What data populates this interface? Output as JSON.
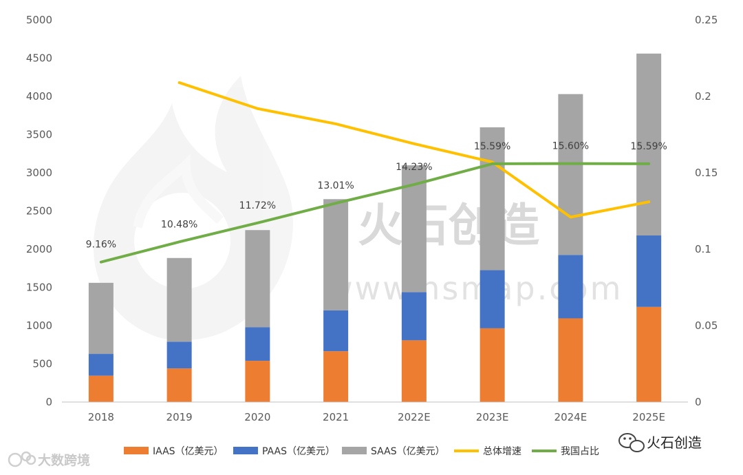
{
  "chart_data": {
    "type": "bar",
    "stacked": true,
    "categories": [
      "2018",
      "2019",
      "2020",
      "2021",
      "2022E",
      "2023E",
      "2024E",
      "2025E"
    ],
    "series": [
      {
        "name": "IAAS（亿美元）",
        "type": "bar",
        "axis": "left",
        "color": "#ED7D31",
        "values": [
          345,
          440,
          540,
          665,
          808,
          965,
          1095,
          1245
        ]
      },
      {
        "name": "PAAS（亿美元）",
        "type": "bar",
        "axis": "left",
        "color": "#4472C4",
        "values": [
          285,
          350,
          440,
          535,
          630,
          760,
          830,
          935
        ]
      },
      {
        "name": "SAAS（亿美元）",
        "type": "bar",
        "axis": "left",
        "color": "#A5A5A5",
        "values": [
          930,
          1095,
          1270,
          1455,
          1660,
          1870,
          2105,
          2380
        ]
      },
      {
        "name": "总体增速",
        "type": "line",
        "axis": "right",
        "color": "#FFC000",
        "values": [
          null,
          0.209,
          0.192,
          0.182,
          0.169,
          0.157,
          0.121,
          0.131
        ]
      },
      {
        "name": "我国占比",
        "type": "line",
        "axis": "right",
        "color": "#70AD47",
        "values": [
          0.0916,
          0.1048,
          0.1172,
          0.1301,
          0.1423,
          0.1559,
          0.156,
          0.1559
        ],
        "labels": [
          "9.16%",
          "10.48%",
          "11.72%",
          "13.01%",
          "14.23%",
          "15.59%",
          "15.60%",
          "15.59%"
        ]
      }
    ],
    "y_left": {
      "ylim": [
        0,
        5000
      ],
      "ticks": [
        "0",
        "500",
        "1000",
        "1500",
        "2000",
        "2500",
        "3000",
        "3500",
        "4000",
        "4500",
        "5000"
      ]
    },
    "y_right": {
      "ylim": [
        0,
        0.25
      ],
      "ticks": [
        "0",
        "0.05",
        "0.1",
        "0.15",
        "0.2",
        "0.25"
      ]
    },
    "title": "",
    "xlabel": "",
    "ylabel": "",
    "grid": false,
    "legend_position": "bottom"
  },
  "watermark": {
    "text": "火石创造",
    "url": "www.hsmap.com"
  },
  "corner_logo_left": {
    "text": "大数跨境",
    "icon": "kaola-icon"
  },
  "corner_logo_right": {
    "text": "火石创造",
    "icon": "wechat-icon"
  }
}
